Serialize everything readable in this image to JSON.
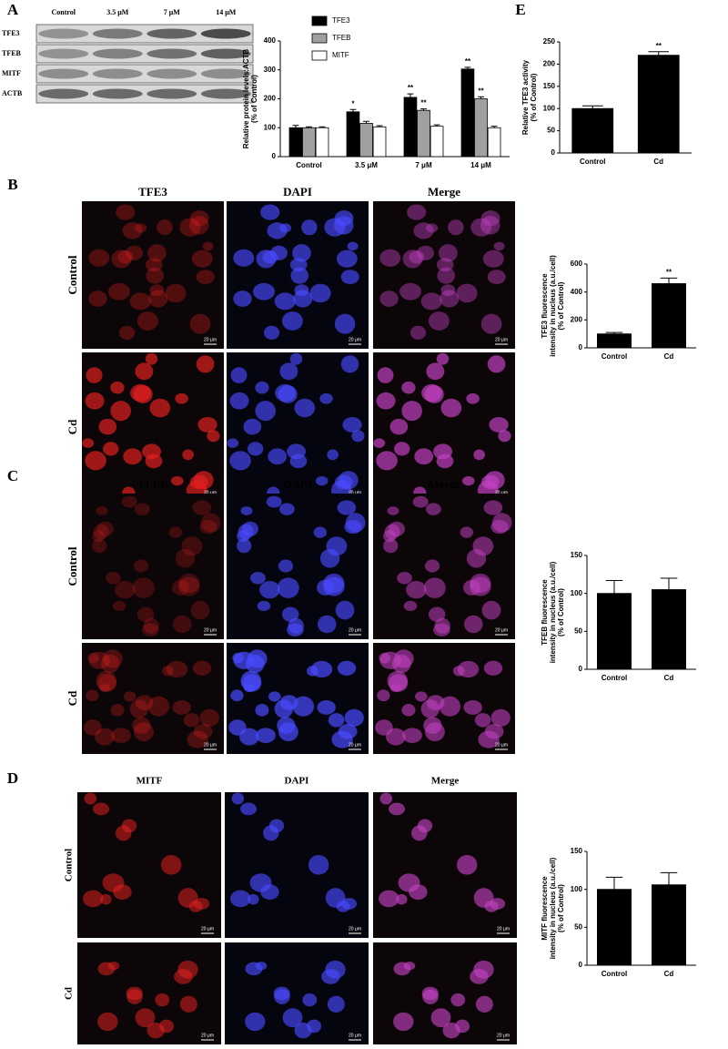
{
  "panel_a": {
    "label": "A",
    "blot": {
      "columns": [
        "Control",
        "3.5 μM",
        "7 μM",
        "14 μM"
      ],
      "rows": [
        "TFE3",
        "TFEB",
        "MITF",
        "ACTB"
      ]
    }
  },
  "panel_b": {
    "label": "B",
    "columns": [
      "TFE3",
      "DAPI",
      "Merge"
    ],
    "rows": [
      "Control",
      "Cd"
    ]
  },
  "panel_c": {
    "label": "C",
    "columns": [
      "TFEB",
      "DAPI",
      "Merge"
    ],
    "rows": [
      "Control",
      "Cd"
    ]
  },
  "panel_d": {
    "label": "D",
    "columns": [
      "MITF",
      "DAPI",
      "Merge"
    ],
    "rows": [
      "Control",
      "Cd"
    ]
  },
  "panel_e": {
    "label": "E"
  },
  "scale_bar": "20 μm",
  "chart_data": [
    {
      "type": "bar",
      "ylabel": [
        "Relative protein levels:ACTB",
        "(% of Control)"
      ],
      "categories": [
        "Control",
        "3.5 μM",
        "7 μM",
        "14 μM"
      ],
      "series": [
        {
          "name": "TFE3",
          "color": "#000000",
          "values": [
            100,
            155,
            205,
            303
          ],
          "errors": [
            8,
            8,
            12,
            6
          ],
          "significance": [
            null,
            "*",
            "**",
            "**"
          ]
        },
        {
          "name": "TFEB",
          "color": "#a0a0a0",
          "values": [
            100,
            115,
            160,
            200
          ],
          "errors": [
            3,
            7,
            5,
            7
          ],
          "significance": [
            null,
            null,
            "**",
            "**"
          ]
        },
        {
          "name": "MITF",
          "color": "#ffffff",
          "values": [
            100,
            103,
            105,
            100
          ],
          "errors": [
            3,
            4,
            5,
            5
          ],
          "significance": [
            null,
            null,
            null,
            null
          ]
        }
      ],
      "ylim": [
        0,
        400
      ],
      "yticks": [
        0,
        100,
        200,
        300,
        400
      ],
      "legend": "top-left"
    },
    {
      "type": "bar",
      "ylabel": [
        "Relative TFE3 activity",
        "(% of Control)"
      ],
      "categories": [
        "Control",
        "Cd"
      ],
      "values": [
        100,
        220
      ],
      "errors": [
        6,
        8
      ],
      "significance": [
        null,
        "**"
      ],
      "color": "#000000",
      "ylim": [
        0,
        250
      ],
      "yticks": [
        0,
        50,
        100,
        150,
        200,
        250
      ]
    },
    {
      "type": "bar",
      "ylabel": [
        "TFE3 fluorescence",
        "intensity in nucleus (a.u./cell)",
        "(% of Control)"
      ],
      "categories": [
        "Control",
        "Cd"
      ],
      "values": [
        100,
        460
      ],
      "errors": [
        10,
        40
      ],
      "significance": [
        null,
        "**"
      ],
      "color": "#000000",
      "ylim": [
        0,
        600
      ],
      "yticks": [
        0,
        200,
        400,
        600
      ]
    },
    {
      "type": "bar",
      "ylabel": [
        "TFEB fluorescence",
        "intensity in nucleus (a.u./cell)",
        "(% of Control)"
      ],
      "categories": [
        "Control",
        "Cd"
      ],
      "values": [
        100,
        105
      ],
      "errors": [
        17,
        15
      ],
      "significance": [
        null,
        null
      ],
      "color": "#000000",
      "ylim": [
        0,
        150
      ],
      "yticks": [
        0,
        50,
        100,
        150
      ]
    },
    {
      "type": "bar",
      "ylabel": [
        "MITF fluorescence",
        "intensity in nucleus (a.u./cell)",
        "(% of Control)"
      ],
      "categories": [
        "Control",
        "Cd"
      ],
      "values": [
        100,
        106
      ],
      "errors": [
        16,
        16
      ],
      "significance": [
        null,
        null
      ],
      "color": "#000000",
      "ylim": [
        0,
        150
      ],
      "yticks": [
        0,
        50,
        100,
        150
      ]
    }
  ]
}
